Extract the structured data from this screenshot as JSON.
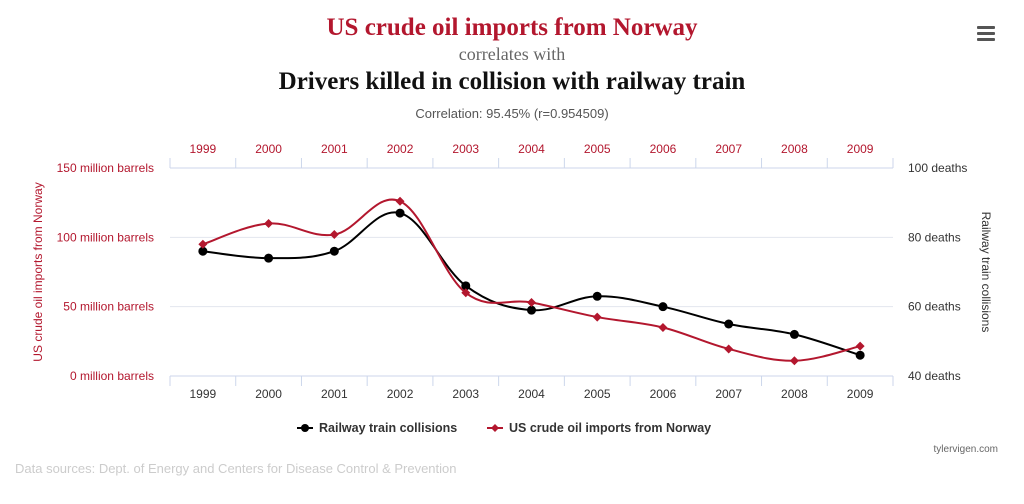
{
  "title": "US crude oil imports from Norway",
  "correlates": "correlates with",
  "subtitle": "Drivers killed in collision with railway train",
  "correlation": "Correlation: 95.45% (r=0.954509)",
  "menu_icon": "hamburger-menu-icon",
  "data_sources": "Data sources: Dept. of Energy and Centers for Disease Control & Prevention",
  "credit": "tylervigen.com",
  "chart_data": {
    "type": "line",
    "categories": [
      "1999",
      "2000",
      "2001",
      "2002",
      "2003",
      "2004",
      "2005",
      "2006",
      "2007",
      "2008",
      "2009"
    ],
    "left_axis": {
      "label": "US crude oil imports from Norway",
      "ticks": [
        "0 million barrels",
        "50 million barrels",
        "100 million barrels",
        "150 million barrels"
      ],
      "range": [
        0,
        150
      ],
      "color": "#b3172e"
    },
    "right_axis": {
      "label": "Railway train collisions",
      "ticks": [
        "40 deaths",
        "60 deaths",
        "80 deaths",
        "100 deaths"
      ],
      "range": [
        40,
        100
      ]
    },
    "grid": true,
    "legend_placement": "bottom",
    "series": [
      {
        "name": "Railway train collisions",
        "axis": "right",
        "color": "#000000",
        "marker": "circle",
        "values": [
          76,
          74,
          76,
          87,
          66,
          59,
          63,
          60,
          55,
          52,
          46
        ]
      },
      {
        "name": "US crude oil imports from Norway",
        "axis": "left",
        "color": "#b3172e",
        "marker": "diamond",
        "values": [
          95,
          110,
          102,
          126,
          60,
          53,
          42.5,
          35,
          19.5,
          11,
          21.5
        ]
      }
    ]
  }
}
